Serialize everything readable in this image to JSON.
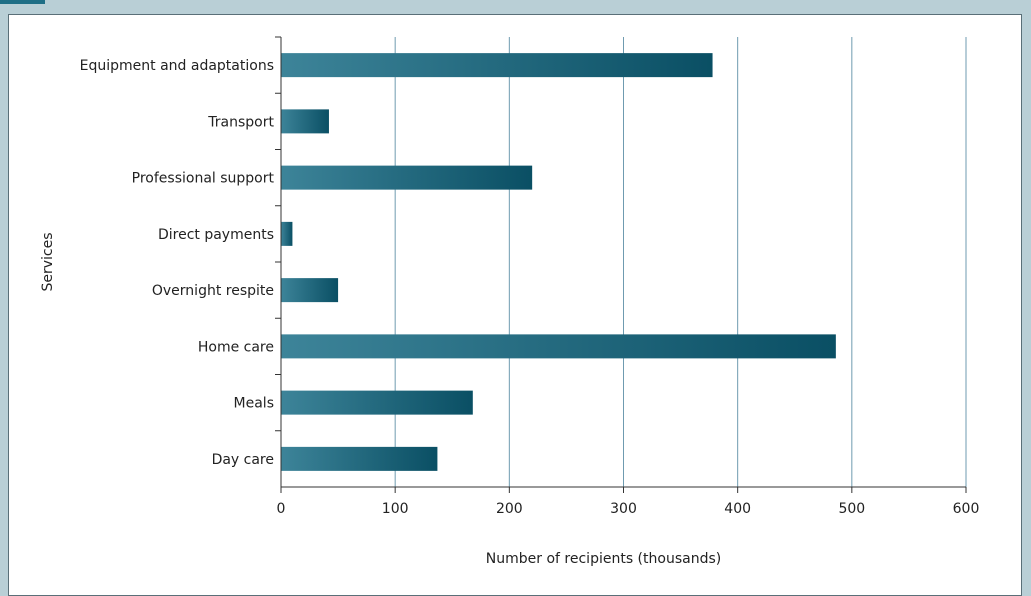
{
  "chart_data": {
    "type": "bar",
    "orientation": "horizontal",
    "categories": [
      "Equipment and adaptations",
      "Transport",
      "Professional support",
      "Direct payments",
      "Overnight respite",
      "Home care",
      "Meals",
      "Day care"
    ],
    "values": [
      378,
      42,
      220,
      10,
      50,
      486,
      168,
      137
    ],
    "xlabel": "Number of recipients (thousands)",
    "ylabel": "Services",
    "xlim": [
      0,
      600
    ],
    "xticks": [
      "0",
      "100",
      "200",
      "300",
      "400",
      "500",
      "600"
    ],
    "grid": "vertical",
    "colors": {
      "bar_dark": "#0a4f64",
      "bar_light": "#3d8499",
      "grid": "#6f9bb0",
      "axis": "#333333"
    }
  }
}
